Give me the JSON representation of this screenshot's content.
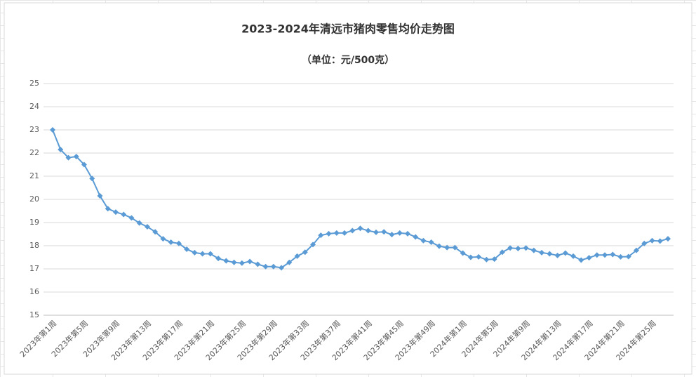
{
  "chart_data": {
    "type": "line",
    "title": "2023-2024年清远市猪肉零售均价走势图",
    "subtitle": "（单位：元/500克）",
    "categories": [
      "2023年第1周",
      null,
      null,
      null,
      "2023年第5周",
      null,
      null,
      null,
      "2023年第9周",
      null,
      null,
      null,
      "2023年第13周",
      null,
      null,
      null,
      "2023年第17周",
      null,
      null,
      null,
      "2023年第21周",
      null,
      null,
      null,
      "2023年第25周",
      null,
      null,
      null,
      "2023年第29周",
      null,
      null,
      null,
      "2023年第33周",
      null,
      null,
      null,
      "2023年第37周",
      null,
      null,
      null,
      "2023年第41周",
      null,
      null,
      null,
      "2023年第45周",
      null,
      null,
      null,
      "2023年第49周",
      null,
      null,
      null,
      "2024年第1周",
      null,
      null,
      null,
      "2024年第5周",
      null,
      null,
      null,
      "2024年第9周",
      null,
      null,
      null,
      "2024年第13周",
      null,
      null,
      null,
      "2024年第17周",
      null,
      null,
      null,
      "2024年第21周",
      null,
      null,
      null,
      "2024年第25周",
      null,
      null
    ],
    "series": [
      {
        "color": "#5b9bd5",
        "values": [
          23.0,
          22.15,
          21.8,
          21.85,
          21.5,
          20.9,
          20.15,
          19.6,
          19.45,
          19.35,
          19.2,
          18.98,
          18.82,
          18.6,
          18.3,
          18.15,
          18.1,
          17.85,
          17.7,
          17.65,
          17.65,
          17.45,
          17.35,
          17.28,
          17.25,
          17.32,
          17.2,
          17.1,
          17.1,
          17.05,
          17.28,
          17.55,
          17.72,
          18.05,
          18.45,
          18.52,
          18.55,
          18.55,
          18.65,
          18.75,
          18.65,
          18.58,
          18.6,
          18.48,
          18.55,
          18.52,
          18.38,
          18.22,
          18.15,
          17.98,
          17.92,
          17.92,
          17.68,
          17.5,
          17.52,
          17.4,
          17.42,
          17.72,
          17.9,
          17.88,
          17.9,
          17.8,
          17.7,
          17.65,
          17.58,
          17.68,
          17.55,
          17.38,
          17.48,
          17.6,
          17.6,
          17.62,
          17.52,
          17.53,
          17.8,
          18.1,
          18.22,
          18.2,
          18.3
        ]
      }
    ],
    "ylim": [
      15,
      25
    ],
    "yticks": [
      15,
      16,
      17,
      18,
      19,
      20,
      21,
      22,
      23,
      24,
      25
    ],
    "grid": true
  }
}
